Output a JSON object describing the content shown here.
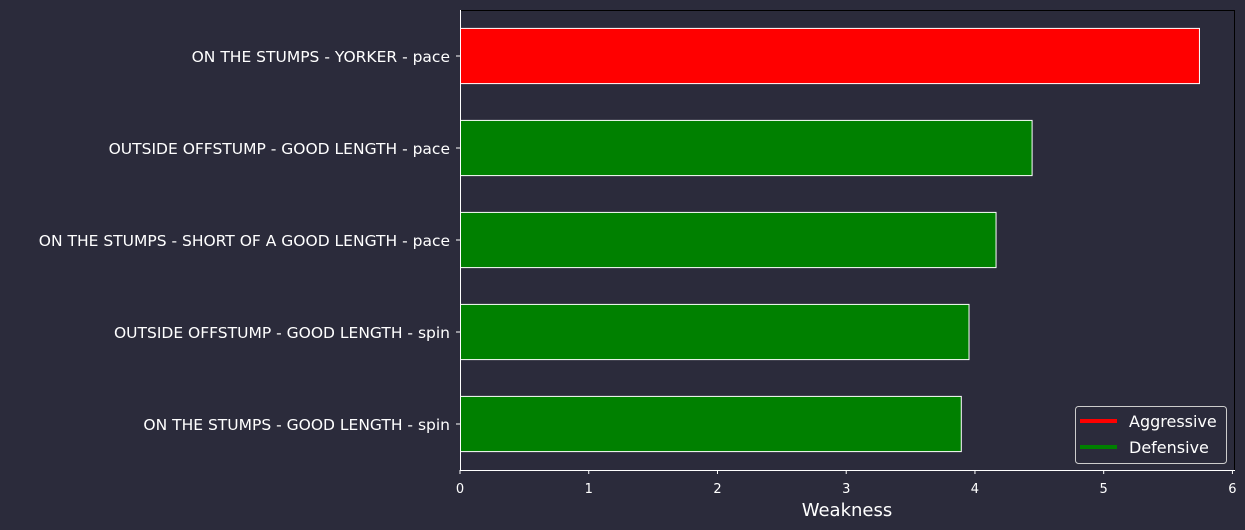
{
  "colors": {
    "background": "#2b2b3b",
    "aggressive": "#ff0000",
    "defensive": "#008000",
    "text": "#ffffff",
    "bar_edge": "#ffffff",
    "legend_bg": "#2b2b3b"
  },
  "chart_data": {
    "type": "bar",
    "orientation": "horizontal",
    "categories": [
      "ON THE STUMPS - YORKER - pace",
      "OUTSIDE OFFSTUMP - GOOD LENGTH - pace",
      "ON THE STUMPS - SHORT OF A GOOD LENGTH - pace",
      "OUTSIDE OFFSTUMP - GOOD LENGTH - spin",
      "ON THE STUMPS - GOOD LENGTH - spin"
    ],
    "values": [
      5.74,
      4.44,
      4.16,
      3.95,
      3.89
    ],
    "bar_types": [
      "Aggressive",
      "Defensive",
      "Defensive",
      "Defensive",
      "Defensive"
    ],
    "xlabel": "Weakness",
    "ylabel": "",
    "xlim": [
      0,
      6.02
    ],
    "xticks": [
      "0",
      "1",
      "2",
      "3",
      "4",
      "5",
      "6"
    ],
    "grid": false,
    "legend": {
      "position": "bottom-right",
      "entries": [
        {
          "label": "Aggressive",
          "color": "#ff0000"
        },
        {
          "label": "Defensive",
          "color": "#008000"
        }
      ]
    }
  }
}
